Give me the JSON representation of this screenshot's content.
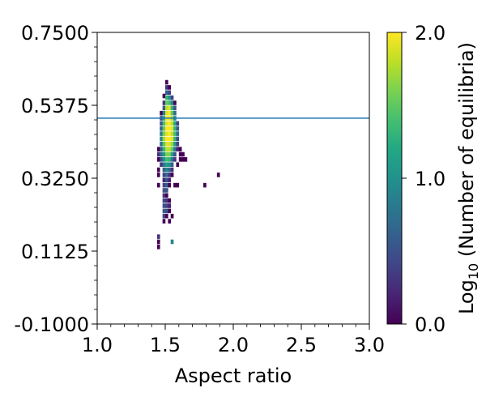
{
  "chart_data": {
    "type": "heatmap",
    "title": "",
    "xlabel": "Aspect ratio",
    "ylabel": "",
    "xlim": [
      1.0,
      3.0
    ],
    "ylim": [
      -0.1,
      0.75
    ],
    "x_ticks": [
      "1.0",
      "1.5",
      "2.0",
      "2.5",
      "3.0"
    ],
    "y_ticks": [
      "-0.1000",
      "0.1125",
      "0.3250",
      "0.5375",
      "0.7500"
    ],
    "colorbar": {
      "label_prefix": "Log",
      "label_subscript": "10",
      "label_suffix": " (Number of equilibria)",
      "range": [
        0.0,
        2.0
      ],
      "ticks": [
        "0.0",
        "1.0",
        "2.0"
      ],
      "colormap": "viridis"
    },
    "hline": {
      "y": 0.5,
      "color": "#1f77b4"
    },
    "bin_width": 0.02,
    "bin_height": 0.0125,
    "cells": [
      [
        1.51,
        0.605,
        0.0
      ],
      [
        1.51,
        0.59,
        0.3
      ],
      [
        1.53,
        0.59,
        0.0
      ],
      [
        1.51,
        0.575,
        0.6
      ],
      [
        1.53,
        0.575,
        0.4
      ],
      [
        1.49,
        0.565,
        0.0
      ],
      [
        1.51,
        0.56,
        1.3
      ],
      [
        1.53,
        0.56,
        1.0
      ],
      [
        1.55,
        0.56,
        0.4
      ],
      [
        1.49,
        0.545,
        0.3
      ],
      [
        1.51,
        0.545,
        1.5
      ],
      [
        1.53,
        0.545,
        1.4
      ],
      [
        1.55,
        0.545,
        0.9
      ],
      [
        1.57,
        0.545,
        0.0
      ],
      [
        1.49,
        0.53,
        0.6
      ],
      [
        1.51,
        0.53,
        1.8
      ],
      [
        1.53,
        0.53,
        1.9
      ],
      [
        1.55,
        0.53,
        1.3
      ],
      [
        1.57,
        0.53,
        0.5
      ],
      [
        1.47,
        0.515,
        0.0
      ],
      [
        1.49,
        0.515,
        0.9
      ],
      [
        1.51,
        0.515,
        1.9
      ],
      [
        1.53,
        0.515,
        2.0
      ],
      [
        1.55,
        0.515,
        1.5
      ],
      [
        1.57,
        0.515,
        0.7
      ],
      [
        1.47,
        0.5,
        0.4
      ],
      [
        1.49,
        0.5,
        1.2
      ],
      [
        1.51,
        0.5,
        2.0
      ],
      [
        1.53,
        0.5,
        2.0
      ],
      [
        1.55,
        0.5,
        1.7
      ],
      [
        1.57,
        0.5,
        0.9
      ],
      [
        1.47,
        0.485,
        0.5
      ],
      [
        1.49,
        0.485,
        1.4
      ],
      [
        1.51,
        0.485,
        1.9
      ],
      [
        1.53,
        0.485,
        2.0
      ],
      [
        1.55,
        0.485,
        1.8
      ],
      [
        1.57,
        0.485,
        1.2
      ],
      [
        1.59,
        0.485,
        0.4
      ],
      [
        1.47,
        0.47,
        0.6
      ],
      [
        1.49,
        0.47,
        1.5
      ],
      [
        1.51,
        0.47,
        2.0
      ],
      [
        1.53,
        0.47,
        2.0
      ],
      [
        1.55,
        0.47,
        1.9
      ],
      [
        1.57,
        0.47,
        1.3
      ],
      [
        1.59,
        0.47,
        0.6
      ],
      [
        1.47,
        0.455,
        0.8
      ],
      [
        1.49,
        0.455,
        1.6
      ],
      [
        1.51,
        0.455,
        1.9
      ],
      [
        1.53,
        0.455,
        2.0
      ],
      [
        1.55,
        0.455,
        1.8
      ],
      [
        1.57,
        0.455,
        1.4
      ],
      [
        1.59,
        0.455,
        0.7
      ],
      [
        1.47,
        0.44,
        0.9
      ],
      [
        1.49,
        0.44,
        1.7
      ],
      [
        1.51,
        0.44,
        2.0
      ],
      [
        1.53,
        0.44,
        2.0
      ],
      [
        1.55,
        0.44,
        1.9
      ],
      [
        1.57,
        0.44,
        1.3
      ],
      [
        1.59,
        0.44,
        0.5
      ],
      [
        1.47,
        0.425,
        0.7
      ],
      [
        1.49,
        0.425,
        1.5
      ],
      [
        1.51,
        0.425,
        1.9
      ],
      [
        1.53,
        0.425,
        1.9
      ],
      [
        1.55,
        0.425,
        1.7
      ],
      [
        1.57,
        0.425,
        1.1
      ],
      [
        1.59,
        0.425,
        0.4
      ],
      [
        1.45,
        0.41,
        0.0
      ],
      [
        1.47,
        0.41,
        0.6
      ],
      [
        1.49,
        0.41,
        1.3
      ],
      [
        1.51,
        0.41,
        1.8
      ],
      [
        1.53,
        0.41,
        1.8
      ],
      [
        1.55,
        0.41,
        1.5
      ],
      [
        1.57,
        0.41,
        0.8
      ],
      [
        1.59,
        0.41,
        0.2
      ],
      [
        1.61,
        0.41,
        0.0
      ],
      [
        1.45,
        0.395,
        0.3
      ],
      [
        1.47,
        0.395,
        0.7
      ],
      [
        1.49,
        0.395,
        1.1
      ],
      [
        1.51,
        0.395,
        1.6
      ],
      [
        1.53,
        0.395,
        1.6
      ],
      [
        1.55,
        0.395,
        1.1
      ],
      [
        1.57,
        0.395,
        0.5
      ],
      [
        1.61,
        0.395,
        0.0
      ],
      [
        1.63,
        0.395,
        0.0
      ],
      [
        1.45,
        0.38,
        0.0
      ],
      [
        1.47,
        0.38,
        0.5
      ],
      [
        1.49,
        0.38,
        1.0
      ],
      [
        1.51,
        0.38,
        1.4
      ],
      [
        1.53,
        0.38,
        1.3
      ],
      [
        1.55,
        0.38,
        0.8
      ],
      [
        1.57,
        0.38,
        0.3
      ],
      [
        1.61,
        0.38,
        0.0
      ],
      [
        1.63,
        0.38,
        0.0
      ],
      [
        1.65,
        0.38,
        0.0
      ],
      [
        1.47,
        0.365,
        0.3
      ],
      [
        1.49,
        0.365,
        0.8
      ],
      [
        1.51,
        0.365,
        1.1
      ],
      [
        1.53,
        0.365,
        1.0
      ],
      [
        1.55,
        0.365,
        0.6
      ],
      [
        1.59,
        0.365,
        0.0
      ],
      [
        1.45,
        0.35,
        0.0
      ],
      [
        1.49,
        0.35,
        0.6
      ],
      [
        1.51,
        0.35,
        0.9
      ],
      [
        1.53,
        0.35,
        0.7
      ],
      [
        1.55,
        0.35,
        0.3
      ],
      [
        1.45,
        0.335,
        0.0
      ],
      [
        1.49,
        0.335,
        0.4
      ],
      [
        1.51,
        0.335,
        0.7
      ],
      [
        1.53,
        0.335,
        0.3
      ],
      [
        1.55,
        0.335,
        0.0
      ],
      [
        1.89,
        0.335,
        0.0
      ],
      [
        1.49,
        0.32,
        0.2
      ],
      [
        1.51,
        0.32,
        0.5
      ],
      [
        1.53,
        0.32,
        0.2
      ],
      [
        1.45,
        0.305,
        0.0
      ],
      [
        1.49,
        0.305,
        0.4
      ],
      [
        1.51,
        0.305,
        0.6
      ],
      [
        1.53,
        0.305,
        0.0
      ],
      [
        1.57,
        0.305,
        0.0
      ],
      [
        1.59,
        0.305,
        0.0
      ],
      [
        1.79,
        0.305,
        0.0
      ],
      [
        1.49,
        0.29,
        0.5
      ],
      [
        1.51,
        0.29,
        0.5
      ],
      [
        1.49,
        0.275,
        0.3
      ],
      [
        1.51,
        0.275,
        0.0
      ],
      [
        1.49,
        0.26,
        0.4
      ],
      [
        1.51,
        0.26,
        0.3
      ],
      [
        1.53,
        0.26,
        0.0
      ],
      [
        1.49,
        0.245,
        0.5
      ],
      [
        1.51,
        0.245,
        0.4
      ],
      [
        1.53,
        0.245,
        0.2
      ],
      [
        1.49,
        0.23,
        0.6
      ],
      [
        1.51,
        0.23,
        0.5
      ],
      [
        1.53,
        0.23,
        0.0
      ],
      [
        1.49,
        0.215,
        0.4
      ],
      [
        1.51,
        0.215,
        0.0
      ],
      [
        1.55,
        0.215,
        0.0
      ],
      [
        1.49,
        0.2,
        0.0
      ],
      [
        1.53,
        0.2,
        0.0
      ],
      [
        1.45,
        0.155,
        0.3
      ],
      [
        1.45,
        0.14,
        0.0
      ],
      [
        1.55,
        0.14,
        0.9
      ],
      [
        1.45,
        0.125,
        0.0
      ]
    ]
  }
}
